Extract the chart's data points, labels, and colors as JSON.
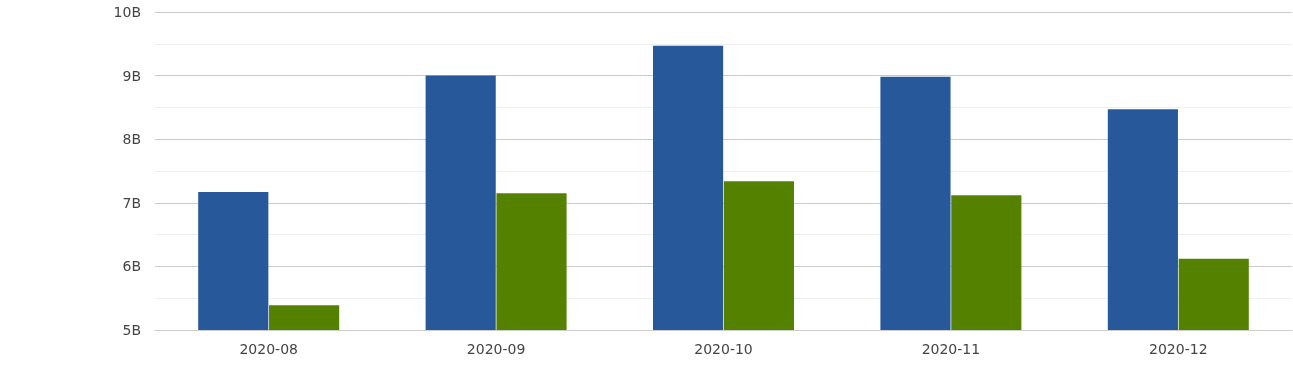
{
  "chart_data": {
    "type": "bar",
    "categories": [
      "2020-08",
      "2020-09",
      "2020-10",
      "2020-11",
      "2020-12"
    ],
    "series": [
      {
        "color": "#27589a",
        "values": [
          7.17,
          9.0,
          9.47,
          8.98,
          8.47
        ]
      },
      {
        "color": "#548200",
        "values": [
          5.39,
          7.15,
          7.34,
          7.12,
          6.12
        ]
      }
    ],
    "ylim": [
      5,
      10
    ],
    "yticks": [
      {
        "value": 5,
        "label": "5B"
      },
      {
        "value": 5.5,
        "label": null
      },
      {
        "value": 6,
        "label": "6B"
      },
      {
        "value": 6.5,
        "label": null
      },
      {
        "value": 7,
        "label": "7B"
      },
      {
        "value": 7.5,
        "label": null
      },
      {
        "value": 8,
        "label": "8B"
      },
      {
        "value": 8.5,
        "label": null
      },
      {
        "value": 9,
        "label": "9B"
      },
      {
        "value": 9.5,
        "label": null
      },
      {
        "value": 10,
        "label": "10B"
      }
    ],
    "grid": "y"
  }
}
